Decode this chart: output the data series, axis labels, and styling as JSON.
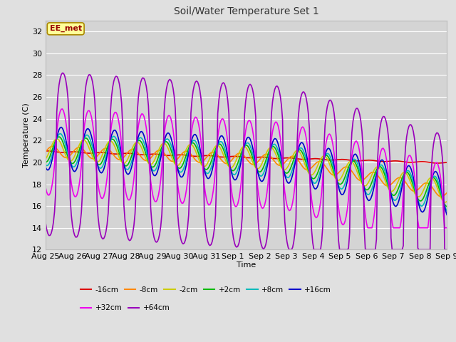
{
  "title": "Soil/Water Temperature Set 1",
  "xlabel": "Time",
  "ylabel": "Temperature (C)",
  "ylim": [
    12,
    33
  ],
  "yticks": [
    12,
    14,
    16,
    18,
    20,
    22,
    24,
    26,
    28,
    30,
    32
  ],
  "fig_bg": "#e0e0e0",
  "plot_bg": "#d4d4d4",
  "annotation_text": "EE_met",
  "annotation_fg": "#990000",
  "annotation_bg": "#ffff99",
  "annotation_border": "#aa8800",
  "series_order": [
    "-16cm",
    "-8cm",
    "-2cm",
    "+2cm",
    "+8cm",
    "+16cm",
    "+32cm",
    "+64cm"
  ],
  "series_colors": {
    "-16cm": "#dd0000",
    "-8cm": "#ff8800",
    "-2cm": "#cccc00",
    "+2cm": "#00bb00",
    "+8cm": "#00bbbb",
    "+16cm": "#0000cc",
    "+32cm": "#ee00ee",
    "+64cm": "#9900bb"
  },
  "x_labels": [
    "Aug 25",
    "Aug 26",
    "Aug 27",
    "Aug 28",
    "Aug 29",
    "Aug 30",
    "Aug 31",
    "Sep 1",
    "Sep 2",
    "Sep 3",
    "Sep 4",
    "Sep 5",
    "Sep 6",
    "Sep 7",
    "Sep 8",
    "Sep 9"
  ],
  "legend_row1": [
    "-16cm",
    "-8cm",
    "-2cm",
    "+2cm",
    "+8cm",
    "+16cm"
  ],
  "legend_row2": [
    "+32cm",
    "+64cm"
  ]
}
